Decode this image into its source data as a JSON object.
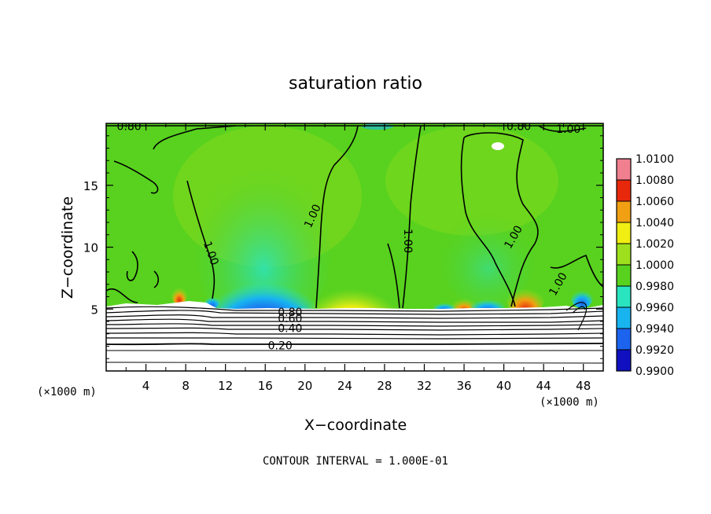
{
  "chart_data": {
    "type": "heatmap",
    "title": "saturation ratio",
    "xlabel": "X−coordinate",
    "ylabel": "Z−coordinate",
    "x_unit_left": "(×1000 m)",
    "x_unit_right": "(×1000 m)",
    "xlim": [
      0,
      50
    ],
    "ylim": [
      0,
      20
    ],
    "x_ticks": [
      4,
      8,
      12,
      16,
      20,
      24,
      28,
      32,
      36,
      40,
      44,
      48
    ],
    "y_ticks": [
      5,
      10,
      15
    ],
    "footer": "CONTOUR INTERVAL = 1.000E-01",
    "colorbar": {
      "levels": [
        "0.9900",
        "0.9920",
        "0.9940",
        "0.9960",
        "0.9980",
        "1.0000",
        "1.0020",
        "1.0040",
        "1.0060",
        "1.0080",
        "1.0100"
      ],
      "colors": [
        "#6a0f9e",
        "#1010c0",
        "#1c64ee",
        "#18b4f0",
        "#2ae4c0",
        "#58d21e",
        "#9ee01e",
        "#f0ee12",
        "#f0a012",
        "#e8280c",
        "#f08090"
      ]
    },
    "contour_labels": [
      {
        "text": "1.00",
        "x": 20.8,
        "z": 12.5,
        "angle": -65
      },
      {
        "text": "1.00",
        "x": 30.3,
        "z": 10.5,
        "angle": 90
      },
      {
        "text": "1.00",
        "x": 41.0,
        "z": 10.8,
        "angle": -60
      },
      {
        "text": "1.00",
        "x": 45.5,
        "z": 7.0,
        "angle": -60
      },
      {
        "text": "1.00",
        "x": 10.5,
        "z": 9.5,
        "angle": 70
      },
      {
        "text": "1.00",
        "x": 46.5,
        "z": 19.5,
        "angle": 0
      },
      {
        "text": "0.80",
        "x": 2.3,
        "z": 19.7,
        "angle": 0
      },
      {
        "text": "0.80",
        "x": 41.5,
        "z": 19.7,
        "angle": 0
      },
      {
        "text": "0.80",
        "x": 18.5,
        "z": 4.7,
        "angle": 0
      },
      {
        "text": "0.60",
        "x": 18.5,
        "z": 4.2,
        "angle": 0
      },
      {
        "text": "0.40",
        "x": 18.5,
        "z": 3.4,
        "angle": 0
      },
      {
        "text": "0.20",
        "x": 17.5,
        "z": 2.0,
        "angle": 0
      }
    ]
  }
}
